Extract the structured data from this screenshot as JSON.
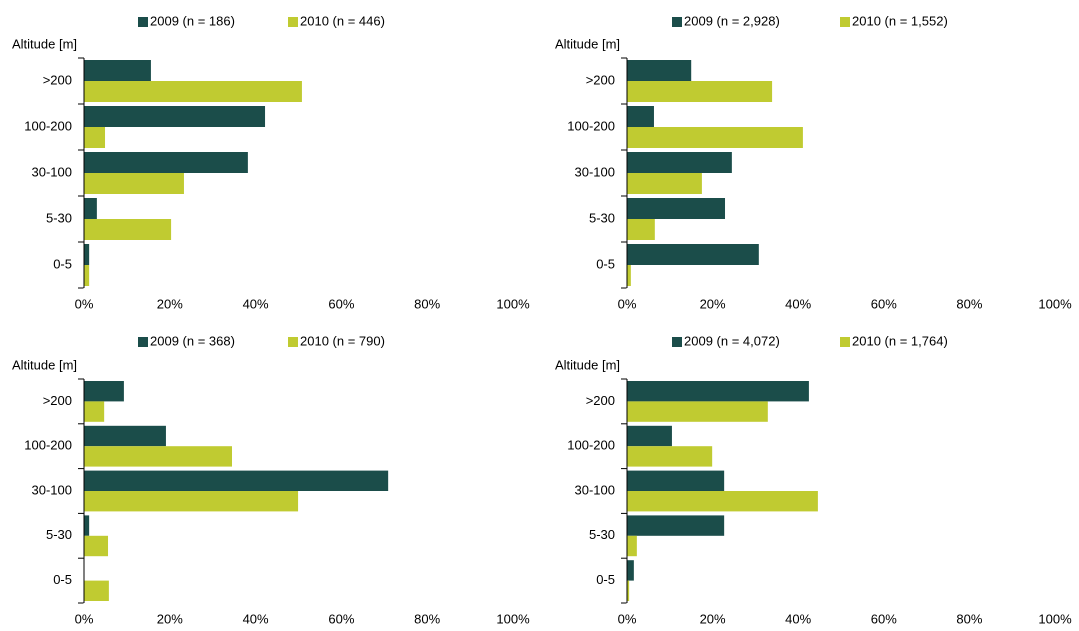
{
  "chart_data": [
    {
      "type": "bar",
      "orientation": "horizontal",
      "y_label": "Altitude [m]",
      "categories": [
        ">200",
        "100-200",
        "30-100",
        "5-30",
        "0-5"
      ],
      "series": [
        {
          "name": "2009 (n = 186)",
          "color": "#1b4d4a",
          "values": [
            15.6,
            42.2,
            38.2,
            3,
            1.2
          ]
        },
        {
          "name": "2010 (n = 446)",
          "color": "#c0cb31",
          "values": [
            50.8,
            4.9,
            23.3,
            20.3,
            1.2
          ]
        }
      ],
      "xlim": [
        0,
        100
      ],
      "xticks": [
        {
          "value": 0,
          "label": "0%"
        },
        {
          "value": 20,
          "label": "20%"
        },
        {
          "value": 40,
          "label": "40%"
        },
        {
          "value": 60,
          "label": "60%"
        },
        {
          "value": 80,
          "label": "80%"
        },
        {
          "value": 100,
          "label": "100%"
        }
      ]
    },
    {
      "type": "bar",
      "orientation": "horizontal",
      "y_label": "Altitude [m]",
      "categories": [
        ">200",
        "100-200",
        "30-100",
        "5-30",
        "0-5"
      ],
      "series": [
        {
          "name": "2009 (n = 2,928)",
          "color": "#1b4d4a",
          "values": [
            15,
            6.3,
            24.5,
            22.9,
            30.8
          ]
        },
        {
          "name": "2010 (n = 1,552)",
          "color": "#c0cb31",
          "values": [
            33.9,
            41.1,
            17.5,
            6.5,
            0.9
          ]
        }
      ],
      "xlim": [
        0,
        100
      ],
      "xticks": [
        {
          "value": 0,
          "label": "0%"
        },
        {
          "value": 20,
          "label": "20%"
        },
        {
          "value": 40,
          "label": "40%"
        },
        {
          "value": 60,
          "label": "60%"
        },
        {
          "value": 80,
          "label": "80%"
        },
        {
          "value": 100,
          "label": "100%"
        }
      ]
    },
    {
      "type": "bar",
      "orientation": "horizontal",
      "y_label": "Altitude [m]",
      "categories": [
        ">200",
        "100-200",
        "30-100",
        "5-30",
        "0-5"
      ],
      "series": [
        {
          "name": "2009 (n = 368)",
          "color": "#1b4d4a",
          "values": [
            9.3,
            19.1,
            70.9,
            1.2,
            0
          ]
        },
        {
          "name": "2010 (n = 790)",
          "color": "#c0cb31",
          "values": [
            4.7,
            34.5,
            49.9,
            5.6,
            5.8
          ]
        }
      ],
      "xlim": [
        0,
        100
      ],
      "xticks": [
        {
          "value": 0,
          "label": "0%"
        },
        {
          "value": 20,
          "label": "20%"
        },
        {
          "value": 40,
          "label": "40%"
        },
        {
          "value": 60,
          "label": "60%"
        },
        {
          "value": 80,
          "label": "80%"
        },
        {
          "value": 100,
          "label": "100%"
        }
      ]
    },
    {
      "type": "bar",
      "orientation": "horizontal",
      "y_label": "Altitude [m]",
      "categories": [
        ">200",
        "100-200",
        "30-100",
        "5-30",
        "0-5"
      ],
      "series": [
        {
          "name": "2009 (n = 4,072)",
          "color": "#1b4d4a",
          "values": [
            42.5,
            10.5,
            22.7,
            22.7,
            1.6
          ]
        },
        {
          "name": "2010 (n = 1,764)",
          "color": "#c0cb31",
          "values": [
            32.9,
            19.9,
            44.6,
            2.3,
            0.5
          ]
        }
      ],
      "xlim": [
        0,
        100
      ],
      "xticks": [
        {
          "value": 0,
          "label": "0%"
        },
        {
          "value": 20,
          "label": "20%"
        },
        {
          "value": 40,
          "label": "40%"
        },
        {
          "value": 60,
          "label": "60%"
        },
        {
          "value": 80,
          "label": "80%"
        },
        {
          "value": 100,
          "label": "100%"
        }
      ]
    }
  ]
}
